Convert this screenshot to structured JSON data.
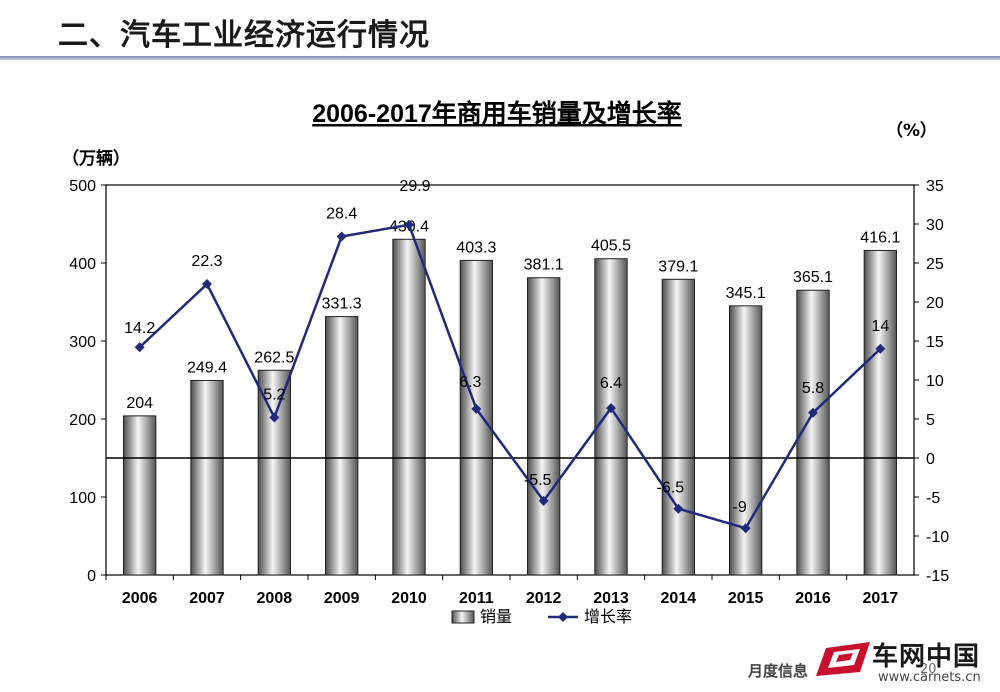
{
  "slide": {
    "title": "二、汽车工业经济运行情况"
  },
  "footer": {
    "text": "月度信息",
    "page": "20"
  },
  "brand": {
    "name": "车网中国",
    "url": "www.carnets.cn"
  },
  "colors": {
    "line": "#1f2a7a",
    "bar_dark": "#5a5a5a",
    "bar_light": "#f2f2f2"
  },
  "chart_data": {
    "type": "bar",
    "title": "2006-2017年商用车销量及增长率",
    "categories": [
      "2006",
      "2007",
      "2008",
      "2009",
      "2010",
      "2011",
      "2012",
      "2013",
      "2014",
      "2015",
      "2016",
      "2017"
    ],
    "series": [
      {
        "name": "销量",
        "type": "bar",
        "axis": "left",
        "values": [
          204,
          249.4,
          262.5,
          331.3,
          430.4,
          403.3,
          381.1,
          405.5,
          379.1,
          345.1,
          365.1,
          416.1
        ],
        "labels": [
          "204",
          "249.4",
          "262.5",
          "331.3",
          "430.4",
          "403.3",
          "381.1",
          "405.5",
          "379.1",
          "345.1",
          "365.1",
          "416.1"
        ]
      },
      {
        "name": "增长率",
        "type": "line",
        "axis": "right",
        "values": [
          14.2,
          22.3,
          5.2,
          28.4,
          29.9,
          6.3,
          -5.5,
          6.4,
          -6.5,
          -9,
          5.8,
          14
        ],
        "labels": [
          "14.2",
          "22.3",
          "5.2",
          "28.4",
          "29.9",
          "6.3",
          "-5.5",
          "6.4",
          "-6.5",
          "-9",
          "5.8",
          "14"
        ]
      }
    ],
    "y_left": {
      "label": "（万辆）",
      "range": [
        0,
        500
      ],
      "ticks": [
        "0",
        "100",
        "200",
        "300",
        "400",
        "500"
      ]
    },
    "y_right": {
      "label": "（%）",
      "range": [
        -15,
        35
      ],
      "ticks": [
        "-15",
        "-10",
        "-5",
        "0",
        "5",
        "10",
        "15",
        "20",
        "25",
        "30",
        "35"
      ]
    },
    "legend": {
      "placement": "bottom",
      "items": [
        "销量",
        "增长率"
      ]
    },
    "grid": false,
    "zero_line": true
  }
}
